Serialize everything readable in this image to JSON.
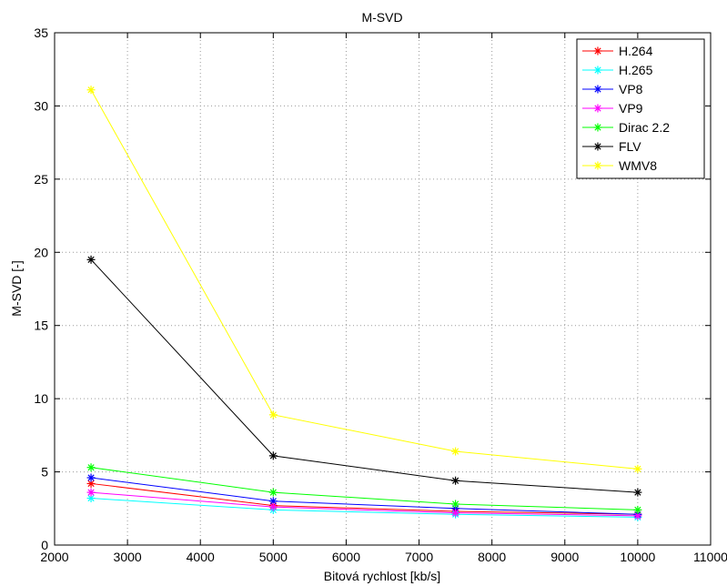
{
  "chart_data": {
    "type": "line",
    "title": "M-SVD",
    "xlabel": "Bitová rychlost [kb/s]",
    "ylabel": "M-SVD [-]",
    "xlim": [
      2000,
      11000
    ],
    "ylim": [
      0,
      35
    ],
    "xticks": [
      2000,
      3000,
      4000,
      5000,
      6000,
      7000,
      8000,
      9000,
      10000,
      11000
    ],
    "yticks": [
      0,
      5,
      10,
      15,
      20,
      25,
      30,
      35
    ],
    "grid": true,
    "legend_position": "top-right",
    "marker": "asterisk",
    "x": [
      2500,
      5000,
      7500,
      10000
    ],
    "series": [
      {
        "name": "H.264",
        "color": "#ff0000",
        "values": [
          4.2,
          2.7,
          2.3,
          2.1
        ]
      },
      {
        "name": "H.265",
        "color": "#00ffff",
        "values": [
          3.2,
          2.4,
          2.1,
          1.9
        ]
      },
      {
        "name": "VP8",
        "color": "#0000ff",
        "values": [
          4.6,
          3.0,
          2.5,
          2.1
        ]
      },
      {
        "name": "VP9",
        "color": "#ff00ff",
        "values": [
          3.6,
          2.6,
          2.2,
          2.0
        ]
      },
      {
        "name": "Dirac 2.2",
        "color": "#00ff00",
        "values": [
          5.3,
          3.6,
          2.8,
          2.4
        ]
      },
      {
        "name": "FLV",
        "color": "#000000",
        "values": [
          19.5,
          6.1,
          4.4,
          3.6
        ]
      },
      {
        "name": "WMV8",
        "color": "#ffff00",
        "values": [
          31.1,
          8.9,
          6.4,
          5.2
        ]
      }
    ]
  }
}
